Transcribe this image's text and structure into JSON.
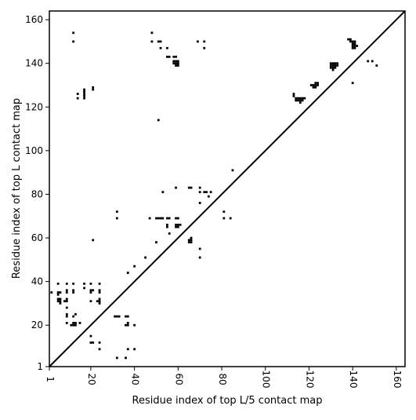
{
  "chart_data": {
    "type": "scatter",
    "xlabel": "Residue index of top L/5 contact map",
    "ylabel": "Residue index of top L contact map",
    "xlim": [
      1,
      164
    ],
    "ylim": [
      1,
      164
    ],
    "x_ticks": [
      1,
      20,
      40,
      60,
      80,
      100,
      120,
      140,
      160
    ],
    "y_ticks": [
      1,
      20,
      40,
      60,
      80,
      100,
      120,
      140,
      160
    ],
    "grid": false,
    "colors": {
      "points": "#000000",
      "diagonal": "#000000",
      "frame": "#000000"
    },
    "diagonal": {
      "from": [
        1,
        1
      ],
      "to": [
        164,
        164
      ]
    },
    "points": [
      [
        12,
        154
      ],
      [
        12,
        150
      ],
      [
        48,
        154
      ],
      [
        48,
        150
      ],
      [
        51,
        150
      ],
      [
        52,
        150
      ],
      [
        52,
        147
      ],
      [
        55,
        147
      ],
      [
        55,
        143
      ],
      [
        56,
        143
      ],
      [
        58,
        143
      ],
      [
        59,
        143
      ],
      [
        58,
        141
      ],
      [
        59,
        141
      ],
      [
        60,
        141
      ],
      [
        58,
        140
      ],
      [
        59,
        140
      ],
      [
        60,
        140
      ],
      [
        59,
        139
      ],
      [
        60,
        139
      ],
      [
        69,
        150
      ],
      [
        72,
        150
      ],
      [
        72,
        147
      ],
      [
        14,
        126
      ],
      [
        14,
        124
      ],
      [
        17,
        128
      ],
      [
        17,
        127
      ],
      [
        17,
        126
      ],
      [
        17,
        125
      ],
      [
        17,
        124
      ],
      [
        21,
        129
      ],
      [
        21,
        128
      ],
      [
        51,
        114
      ],
      [
        85,
        91
      ],
      [
        113,
        126
      ],
      [
        113,
        125
      ],
      [
        114,
        124
      ],
      [
        115,
        124
      ],
      [
        116,
        124
      ],
      [
        117,
        124
      ],
      [
        118,
        124
      ],
      [
        114,
        123
      ],
      [
        115,
        123
      ],
      [
        116,
        123
      ],
      [
        117,
        123
      ],
      [
        116,
        122
      ],
      [
        121,
        130
      ],
      [
        122,
        130
      ],
      [
        123,
        131
      ],
      [
        124,
        131
      ],
      [
        123,
        130
      ],
      [
        124,
        130
      ],
      [
        123,
        129
      ],
      [
        122,
        129
      ],
      [
        130,
        140
      ],
      [
        131,
        140
      ],
      [
        132,
        140
      ],
      [
        133,
        140
      ],
      [
        130,
        139
      ],
      [
        131,
        139
      ],
      [
        132,
        139
      ],
      [
        133,
        139
      ],
      [
        130,
        138
      ],
      [
        131,
        138
      ],
      [
        132,
        138
      ],
      [
        131,
        137
      ],
      [
        138,
        151
      ],
      [
        139,
        151
      ],
      [
        139,
        150
      ],
      [
        140,
        150
      ],
      [
        141,
        150
      ],
      [
        140,
        149
      ],
      [
        141,
        149
      ],
      [
        140,
        148
      ],
      [
        141,
        148
      ],
      [
        142,
        148
      ],
      [
        140,
        147
      ],
      [
        141,
        147
      ],
      [
        140,
        131
      ],
      [
        147,
        141
      ],
      [
        149,
        141
      ],
      [
        151,
        139
      ],
      [
        59,
        83
      ],
      [
        65,
        83
      ],
      [
        66,
        83
      ],
      [
        70,
        83
      ],
      [
        70,
        81
      ],
      [
        72,
        81
      ],
      [
        73,
        81
      ],
      [
        75,
        81
      ],
      [
        53,
        81
      ],
      [
        74,
        79
      ],
      [
        70,
        76
      ],
      [
        32,
        72
      ],
      [
        81,
        72
      ],
      [
        32,
        69
      ],
      [
        47,
        69
      ],
      [
        50,
        69
      ],
      [
        51,
        69
      ],
      [
        52,
        69
      ],
      [
        53,
        69
      ],
      [
        55,
        69
      ],
      [
        56,
        69
      ],
      [
        59,
        69
      ],
      [
        60,
        69
      ],
      [
        81,
        69
      ],
      [
        84,
        69
      ],
      [
        55,
        66
      ],
      [
        59,
        66
      ],
      [
        60,
        66
      ],
      [
        61,
        66
      ],
      [
        55,
        65
      ],
      [
        59,
        65
      ],
      [
        60,
        65
      ],
      [
        56,
        62
      ],
      [
        66,
        60
      ],
      [
        65,
        59
      ],
      [
        66,
        59
      ],
      [
        21,
        59
      ],
      [
        50,
        58
      ],
      [
        65,
        58
      ],
      [
        66,
        58
      ],
      [
        70,
        55
      ],
      [
        45,
        51
      ],
      [
        70,
        51
      ],
      [
        40,
        47
      ],
      [
        37,
        44
      ],
      [
        5,
        39
      ],
      [
        9,
        39
      ],
      [
        12,
        39
      ],
      [
        17,
        39
      ],
      [
        20,
        39
      ],
      [
        24,
        39
      ],
      [
        17,
        37
      ],
      [
        20,
        36
      ],
      [
        21,
        36
      ],
      [
        24,
        36
      ],
      [
        9,
        36
      ],
      [
        12,
        36
      ],
      [
        20,
        35
      ],
      [
        9,
        35
      ],
      [
        12,
        35
      ],
      [
        24,
        35
      ],
      [
        2,
        35
      ],
      [
        5,
        35
      ],
      [
        6,
        35
      ],
      [
        5,
        34
      ],
      [
        5,
        32
      ],
      [
        6,
        32
      ],
      [
        9,
        32
      ],
      [
        5,
        31
      ],
      [
        6,
        31
      ],
      [
        8,
        31
      ],
      [
        9,
        31
      ],
      [
        24,
        32
      ],
      [
        23,
        31
      ],
      [
        24,
        31
      ],
      [
        20,
        31
      ],
      [
        6,
        30
      ],
      [
        24,
        30
      ],
      [
        9,
        28
      ],
      [
        9,
        25
      ],
      [
        13,
        25
      ],
      [
        9,
        24
      ],
      [
        12,
        24
      ],
      [
        9,
        21
      ],
      [
        12,
        21
      ],
      [
        13,
        21
      ],
      [
        15,
        21
      ],
      [
        11,
        20
      ],
      [
        12,
        20
      ],
      [
        13,
        20
      ],
      [
        31,
        24
      ],
      [
        32,
        24
      ],
      [
        33,
        24
      ],
      [
        36,
        24
      ],
      [
        37,
        24
      ],
      [
        37,
        21
      ],
      [
        36,
        20
      ],
      [
        37,
        20
      ],
      [
        40,
        20
      ],
      [
        20,
        15
      ],
      [
        20,
        12
      ],
      [
        21,
        12
      ],
      [
        24,
        12
      ],
      [
        24,
        9
      ],
      [
        37,
        9
      ],
      [
        40,
        9
      ],
      [
        32,
        5
      ],
      [
        36,
        5
      ]
    ]
  }
}
